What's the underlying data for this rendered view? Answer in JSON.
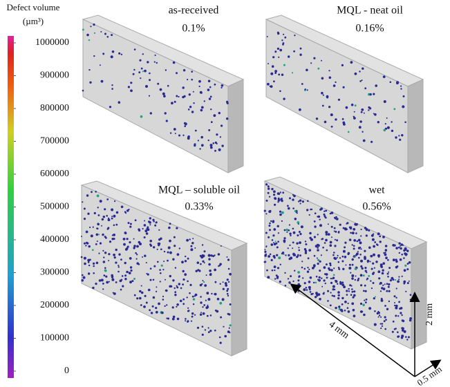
{
  "colorbar": {
    "title": "Defect volume",
    "unit": "(µm³)",
    "lim": [
      0,
      1000000
    ],
    "ticks": [
      0,
      100000,
      200000,
      300000,
      400000,
      500000,
      600000,
      700000,
      800000,
      900000,
      1000000
    ]
  },
  "panels": [
    {
      "title": "as-received",
      "value": "0.1%"
    },
    {
      "title": "MQL - neat oil",
      "value": "0.16%"
    },
    {
      "title": "MQL – soluble oil",
      "value": "0.33%"
    },
    {
      "title": "wet",
      "value": "0.56%"
    }
  ],
  "scale": {
    "length": "4 mm",
    "height": "2 mm",
    "depth": "0.5 mm"
  }
}
